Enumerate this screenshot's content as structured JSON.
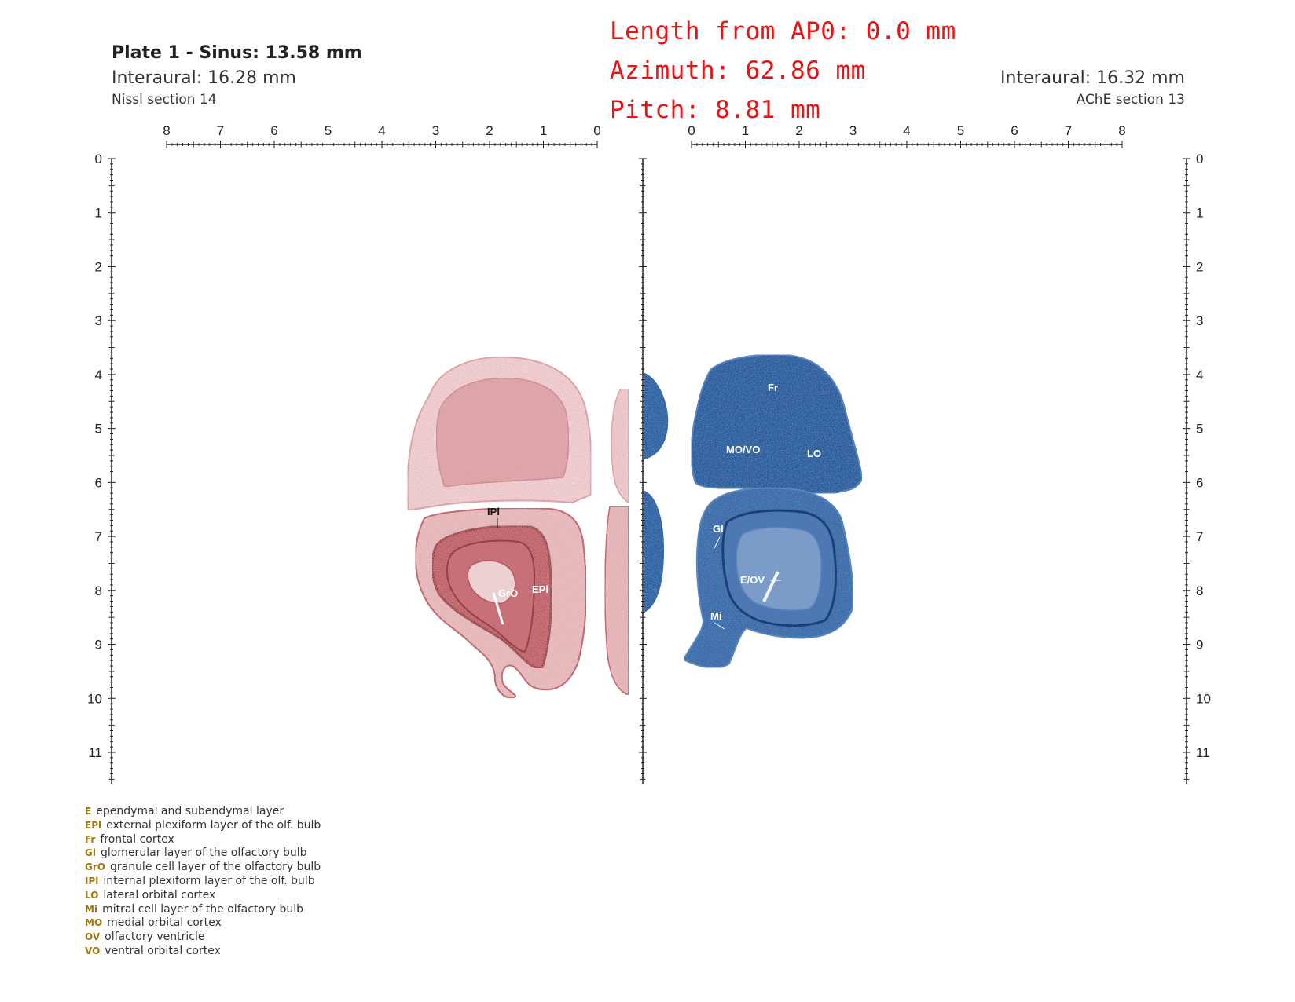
{
  "header": {
    "plate_title": "Plate 1 - Sinus: 13.58 mm",
    "left_interaural": "Interaural: 16.28 mm",
    "left_section": "Nissl section 14",
    "right_interaural": "Interaural: 16.32 mm",
    "right_section": "AChE section 13"
  },
  "overlay": {
    "length": "Length from AP0: 0.0 mm",
    "azimuth": "Azimuth: 62.86 mm",
    "pitch": "Pitch: 8.81 mm",
    "color": "#ee1111"
  },
  "rulers": {
    "top_left": [
      "8",
      "7",
      "6",
      "5",
      "4",
      "3",
      "2",
      "1",
      "0"
    ],
    "top_right": [
      "0",
      "1",
      "2",
      "3",
      "4",
      "5",
      "6",
      "7",
      "8"
    ],
    "vertical": [
      "0",
      "1",
      "2",
      "3",
      "4",
      "5",
      "6",
      "7",
      "8",
      "9",
      "10",
      "11"
    ]
  },
  "labels": {
    "nissl": [
      "IPl",
      "GrO",
      "EPl"
    ],
    "ache": [
      "Fr",
      "MO/VO",
      "LO",
      "Gl",
      "E/OV",
      "Mi"
    ]
  },
  "legend": [
    {
      "abbr": "E",
      "text": "ependymal and subendymal layer"
    },
    {
      "abbr": "EPl",
      "text": "external plexiform layer of the olf. bulb"
    },
    {
      "abbr": "Fr",
      "text": "frontal cortex"
    },
    {
      "abbr": "Gl",
      "text": "glomerular layer of the olfactory bulb"
    },
    {
      "abbr": "GrO",
      "text": "granule cell layer of the olfactory bulb"
    },
    {
      "abbr": "IPl",
      "text": "internal plexiform layer of the olf. bulb"
    },
    {
      "abbr": "LO",
      "text": "lateral orbital cortex"
    },
    {
      "abbr": "Mi",
      "text": "mitral cell layer of the olfactory bulb"
    },
    {
      "abbr": "MO",
      "text": "medial orbital cortex"
    },
    {
      "abbr": "OV",
      "text": "olfactory ventricle"
    },
    {
      "abbr": "VO",
      "text": "ventral orbital cortex"
    }
  ],
  "colors": {
    "nissl_stain": "#b8555c",
    "ache_stain": "#2a5a9a",
    "legend_abbr": "#a07a10"
  }
}
